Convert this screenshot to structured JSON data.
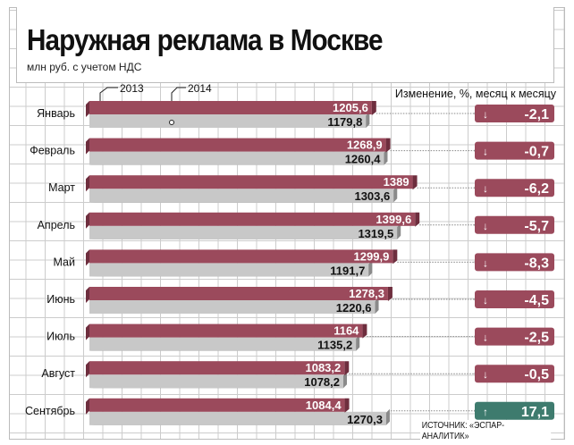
{
  "title": "Наружная реклама в Москве",
  "subtitle": "млн руб. с учетом НДС",
  "source": "ИСТОЧНИК: «ЭСПАР-АНАЛИТИК»",
  "colors": {
    "y2013": "#9b4a5c",
    "y2014": "#c8c8c8",
    "up": "#3e7b6e",
    "down": "#9b4a5c"
  },
  "chart_data": {
    "type": "bar",
    "title": "Наружная реклама в Москве",
    "ylabel": "млн руб. с учетом НДС",
    "categories": [
      "Январь",
      "Февраль",
      "Март",
      "Апрель",
      "Май",
      "Июнь",
      "Июль",
      "Август",
      "Сентябрь"
    ],
    "series": [
      {
        "name": "2013",
        "labels": [
          "1205,6",
          "1268,9",
          "1389",
          "1399,6",
          "1299,9",
          "1278,3",
          "1164",
          "1083,2",
          "1084,4"
        ],
        "values": [
          1205.6,
          1268.9,
          1389,
          1399.6,
          1299.9,
          1278.3,
          1164,
          1083.2,
          1084.4
        ]
      },
      {
        "name": "2014",
        "labels": [
          "1179,8",
          "1260,4",
          "1303,6",
          "1319,5",
          "1191,7",
          "1220,6",
          "1135,2",
          "1078,2",
          "1270,3"
        ],
        "values": [
          1179.8,
          1260.4,
          1303.6,
          1319.5,
          1191.7,
          1220.6,
          1135.2,
          1078.2,
          1270.3
        ]
      }
    ],
    "change_title": "Изменение, %, месяц к месяцу",
    "change": {
      "labels": [
        "-2,1",
        "-0,7",
        "-6,2",
        "-5,7",
        "-8,3",
        "-4,5",
        "-2,5",
        "-0,5",
        "17,1"
      ],
      "values": [
        -2.1,
        -0.7,
        -6.2,
        -5.7,
        -8.3,
        -4.5,
        -2.5,
        -0.5,
        17.1
      ]
    }
  }
}
